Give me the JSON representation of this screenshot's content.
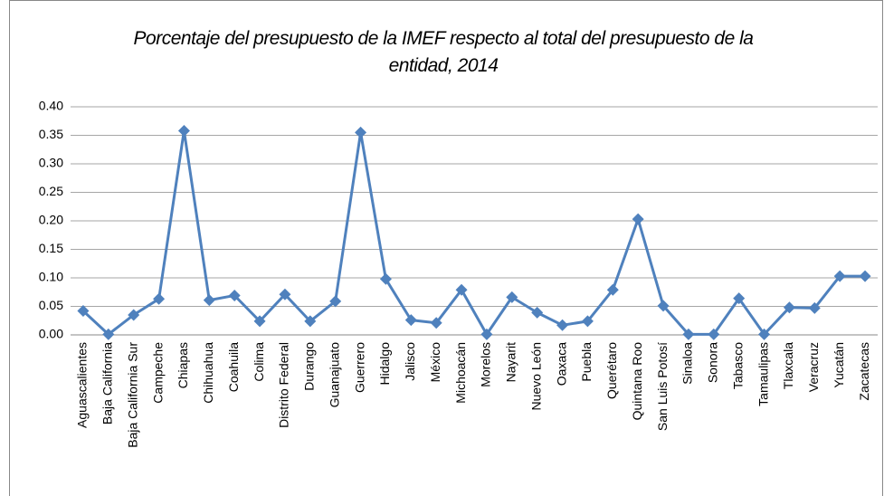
{
  "chart_data": {
    "type": "line",
    "title": "Porcentaje del presupuesto de la IMEF respecto al total del presupuesto de la entidad, 2014",
    "categories": [
      "Aguascalientes",
      "Baja California",
      "Baja California Sur",
      "Campeche",
      "Chiapas",
      "Chihuahua",
      "Coahuila",
      "Colima",
      "Distrito Federal",
      "Durango",
      "Guanajuato",
      "Guerrero",
      "Hidalgo",
      "Jalisco",
      "México",
      "Michoacán",
      "Morelos",
      "Nayarit",
      "Nuevo León",
      "Oaxaca",
      "Puebla",
      "Querétaro",
      "Quintana Roo",
      "San Luis Potosí",
      "Sinaloa",
      "Sonora",
      "Tabasco",
      "Tamaulipas",
      "Tlaxcala",
      "Veracruz",
      "Yucatán",
      "Zacatecas"
    ],
    "values": [
      0.042,
      0.001,
      0.035,
      0.063,
      0.358,
      0.061,
      0.069,
      0.024,
      0.071,
      0.024,
      0.059,
      0.355,
      0.098,
      0.026,
      0.021,
      0.079,
      0.001,
      0.066,
      0.039,
      0.017,
      0.024,
      0.079,
      0.203,
      0.051,
      0.001,
      0.001,
      0.064,
      0.001,
      0.048,
      0.047,
      0.103,
      0.103
    ],
    "color": "#4f81bd",
    "ylim": [
      0,
      0.4
    ],
    "yticks": [
      {
        "value": 0,
        "label": "0.00"
      },
      {
        "value": 0.05,
        "label": "0.05"
      },
      {
        "value": 0.1,
        "label": "0.10"
      },
      {
        "value": 0.15,
        "label": "0.15"
      },
      {
        "value": 0.2,
        "label": "0.20"
      },
      {
        "value": 0.25,
        "label": "0.25"
      },
      {
        "value": 0.3,
        "label": "0.30"
      },
      {
        "value": 0.35,
        "label": "0.35"
      },
      {
        "value": 0.4,
        "label": "0.40"
      }
    ],
    "grid": true
  }
}
